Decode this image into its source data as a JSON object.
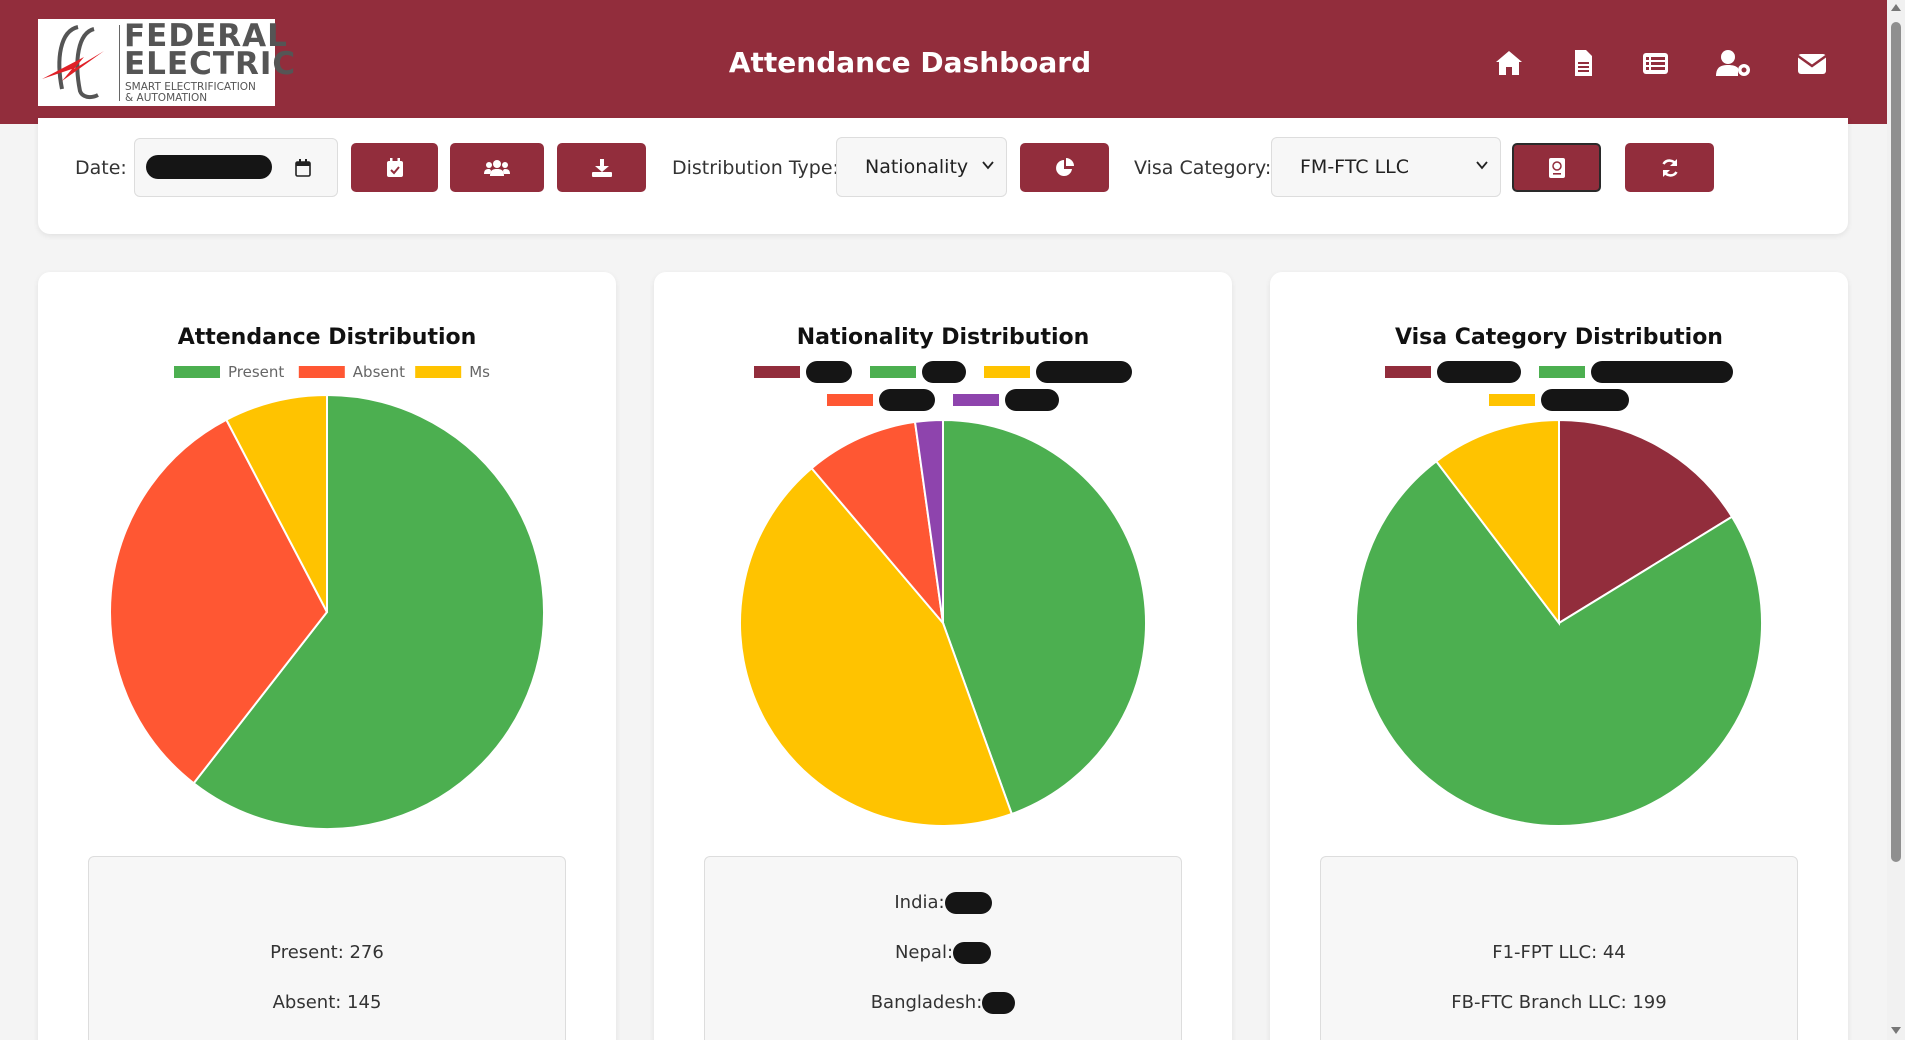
{
  "header": {
    "logo_line1": "FEDERAL",
    "logo_line2": "ELECTRIC",
    "logo_tag1": "SMART ELECTRIFICATION",
    "logo_tag2": "& AUTOMATION",
    "title": "Attendance Dashboard",
    "nav_icons": [
      "home-icon",
      "document-icon",
      "list-icon",
      "user-settings-icon",
      "envelope-icon"
    ]
  },
  "toolbar": {
    "date_label": "Date:",
    "distribution_label": "Distribution Type:",
    "distribution_value": "Nationality",
    "visa_label": "Visa Category:",
    "visa_value": "FM-FTC LLC",
    "buttons": [
      "calendar-check-icon",
      "users-icon",
      "download-icon",
      "chart-pie-icon",
      "passport-icon",
      "refresh-icon"
    ]
  },
  "colors": {
    "brand": "#922d3c",
    "green": "#4caf50",
    "orange": "#ff5733",
    "yellow": "#ffc300",
    "purple": "#8e44ad"
  },
  "cards": [
    {
      "title": "Attendance Distribution",
      "stats": [
        "Present: 276",
        "Absent: 145"
      ]
    },
    {
      "title": "Nationality Distribution",
      "stats": [
        "India:",
        "Nepal:",
        "Bangladesh:"
      ]
    },
    {
      "title": "Visa Category Distribution",
      "stats": [
        "F1-FPT LLC: 44",
        "FB-FTC Branch LLC: 199"
      ]
    }
  ],
  "chart_data": [
    {
      "type": "pie",
      "title": "Attendance Distribution",
      "legend": "top",
      "labels": [
        "Present",
        "Absent",
        "Ms"
      ],
      "values": [
        276,
        145,
        35
      ],
      "colors": [
        "#4caf50",
        "#ff5733",
        "#ffc300"
      ]
    },
    {
      "type": "pie",
      "title": "Nationality Distribution",
      "legend": "top",
      "labels": [
        "",
        "",
        "",
        "",
        ""
      ],
      "values": [
        0,
        44.5,
        44.3,
        9,
        2.2
      ],
      "colors": [
        "#922d3c",
        "#4caf50",
        "#ffc300",
        "#ff5733",
        "#8e44ad"
      ]
    },
    {
      "type": "pie",
      "title": "Visa Category Distribution",
      "legend": "top",
      "labels": [
        "",
        "",
        ""
      ],
      "values": [
        44,
        199,
        28
      ],
      "colors": [
        "#922d3c",
        "#4caf50",
        "#ffc300"
      ]
    }
  ]
}
